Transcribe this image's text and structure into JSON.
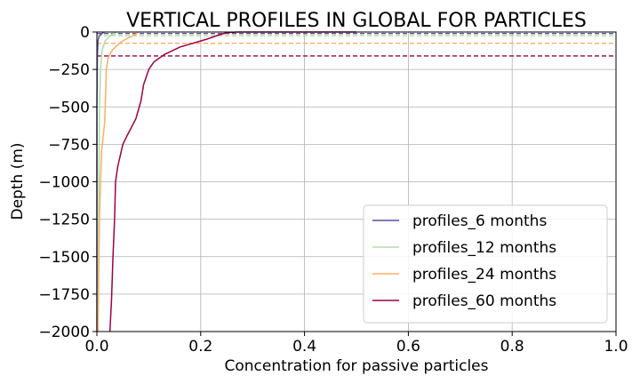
{
  "chart_data": {
    "type": "line",
    "title": "VERTICAL PROFILES IN GLOBAL FOR PARTICLES",
    "xlabel": "Concentration for passive particles",
    "ylabel": "Depth (m)",
    "xlim": [
      0,
      1.0
    ],
    "ylim": [
      -2000,
      0
    ],
    "xticks": [
      "0.0",
      "0.2",
      "0.4",
      "0.6",
      "0.8",
      "1.0"
    ],
    "yticks": [
      "0",
      "−250",
      "−500",
      "−750",
      "−1000",
      "−1250",
      "−1500",
      "−1750",
      "−2000"
    ],
    "grid": true,
    "legend_position": "lower-right",
    "series": [
      {
        "name": "profiles_6 months",
        "color": "#5e4fa2",
        "points": [
          [
            0.0,
            -2000
          ],
          [
            0.0,
            -500
          ],
          [
            0.001,
            -150
          ],
          [
            0.002,
            -60
          ],
          [
            0.004,
            -30
          ],
          [
            0.008,
            -15
          ],
          [
            0.012,
            -5
          ],
          [
            0.014,
            0
          ]
        ],
        "mixed_layer_depth": -10
      },
      {
        "name": "profiles_12 months",
        "color": "#abdda4",
        "points": [
          [
            0.002,
            -2000
          ],
          [
            0.003,
            -1500
          ],
          [
            0.004,
            -1000
          ],
          [
            0.005,
            -500
          ],
          [
            0.007,
            -250
          ],
          [
            0.01,
            -120
          ],
          [
            0.016,
            -60
          ],
          [
            0.024,
            -30
          ],
          [
            0.032,
            -10
          ],
          [
            0.038,
            0
          ]
        ],
        "mixed_layer_depth": -25
      },
      {
        "name": "profiles_24 months",
        "color": "#fdae61",
        "points": [
          [
            0.002,
            -2000
          ],
          [
            0.003,
            -1750
          ],
          [
            0.004,
            -1500
          ],
          [
            0.005,
            -1250
          ],
          [
            0.007,
            -1000
          ],
          [
            0.009,
            -800
          ],
          [
            0.012,
            -700
          ],
          [
            0.015,
            -600
          ],
          [
            0.017,
            -400
          ],
          [
            0.018,
            -250
          ],
          [
            0.022,
            -170
          ],
          [
            0.03,
            -120
          ],
          [
            0.045,
            -70
          ],
          [
            0.06,
            -40
          ],
          [
            0.075,
            -15
          ],
          [
            0.08,
            0
          ]
        ],
        "mixed_layer_depth": -75
      },
      {
        "name": "profiles_60 months",
        "color": "#9e0142",
        "points": [
          [
            0.025,
            -2000
          ],
          [
            0.028,
            -1800
          ],
          [
            0.031,
            -1500
          ],
          [
            0.034,
            -1250
          ],
          [
            0.036,
            -1000
          ],
          [
            0.04,
            -900
          ],
          [
            0.05,
            -750
          ],
          [
            0.06,
            -680
          ],
          [
            0.075,
            -580
          ],
          [
            0.085,
            -460
          ],
          [
            0.09,
            -350
          ],
          [
            0.1,
            -250
          ],
          [
            0.11,
            -200
          ],
          [
            0.13,
            -150
          ],
          [
            0.16,
            -100
          ],
          [
            0.21,
            -50
          ],
          [
            0.235,
            -20
          ],
          [
            0.25,
            -5
          ],
          [
            0.27,
            0
          ],
          [
            0.4,
            0
          ],
          [
            0.5,
            0
          ]
        ],
        "mixed_layer_depth": -160
      }
    ]
  }
}
